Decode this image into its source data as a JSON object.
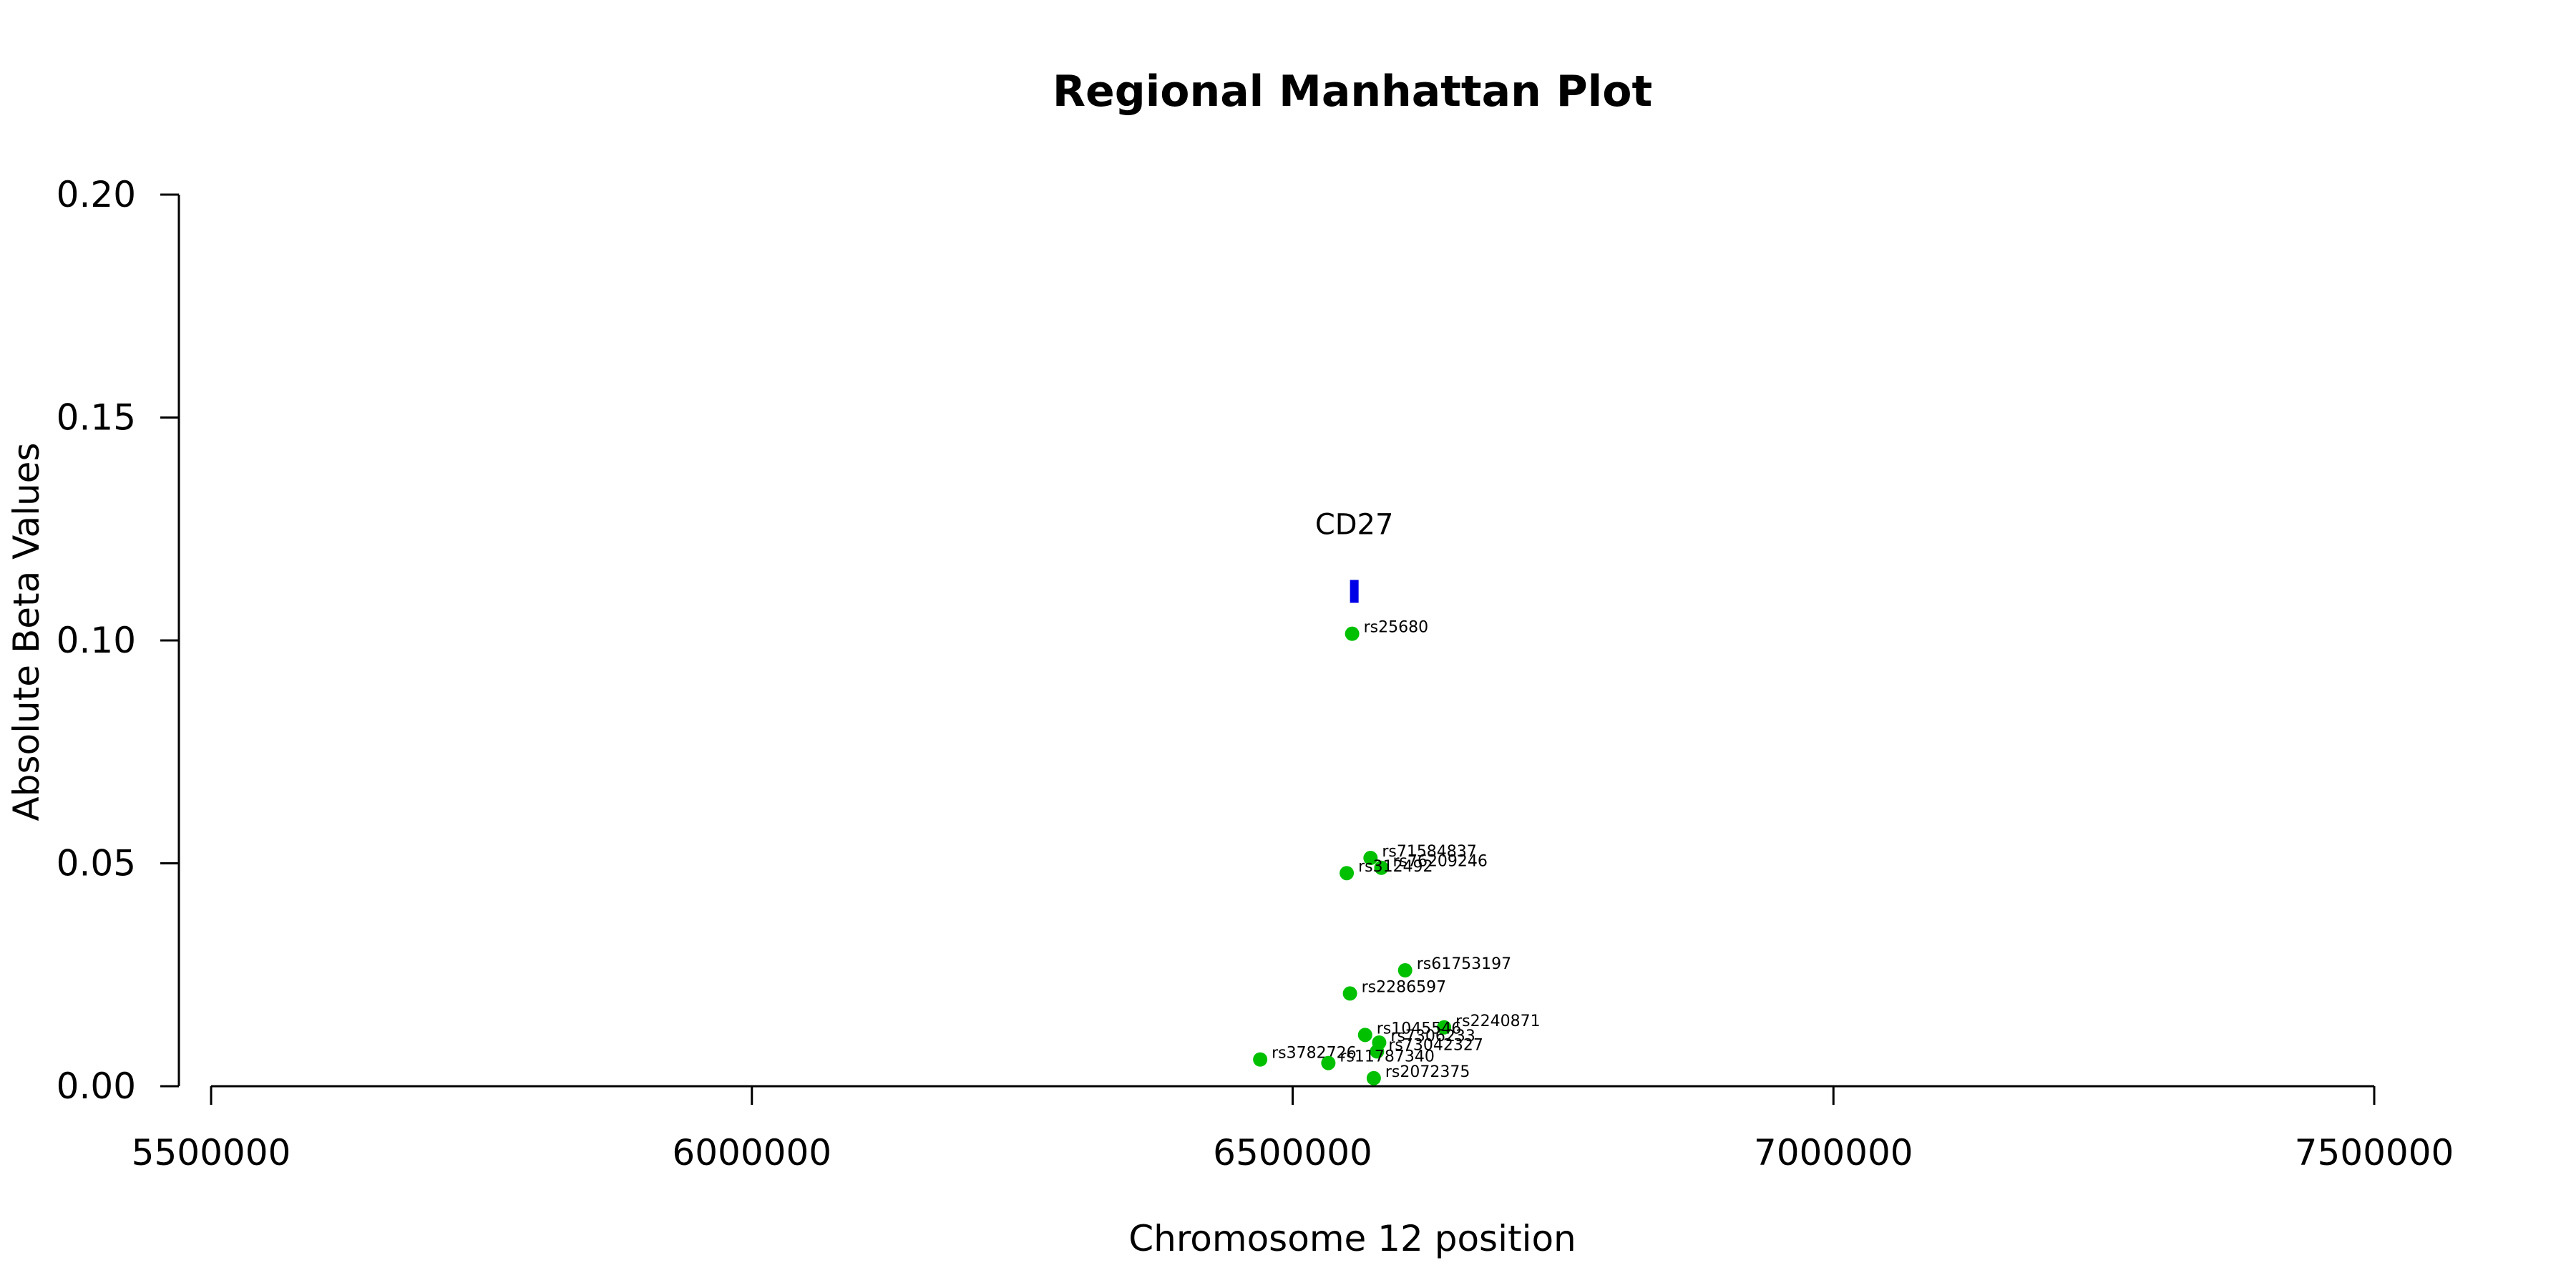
{
  "chart_data": {
    "type": "scatter",
    "title": "Regional Manhattan Plot",
    "xlabel": "Chromosome 12 position",
    "ylabel": "Absolute Beta Values",
    "xlim": [
      5500000,
      7500000
    ],
    "ylim": [
      0,
      0.2
    ],
    "xticks": [
      5500000,
      6000000,
      6500000,
      7000000,
      7500000
    ],
    "xtick_labels": [
      "5500000",
      "6000000",
      "6500000",
      "7000000",
      "7500000"
    ],
    "yticks": [
      0,
      0.05,
      0.1,
      0.15,
      0.2
    ],
    "ytick_labels": [
      "0.00",
      "0.05",
      "0.10",
      "0.15",
      "0.20"
    ],
    "grid": false,
    "point_color": "#00c000",
    "gene_color": "#0000e6",
    "genes": [
      {
        "name": "CD27",
        "start": 6554000,
        "end": 6560000,
        "y": 0.111
      }
    ],
    "points": [
      {
        "label": "rs25680",
        "x": 6555000,
        "y": 0.1015
      },
      {
        "label": "rs71584837",
        "x": 6572000,
        "y": 0.0512
      },
      {
        "label": "rs76209246",
        "x": 6582000,
        "y": 0.049
      },
      {
        "label": "rs312492",
        "x": 6550000,
        "y": 0.0478
      },
      {
        "label": "rs61753197",
        "x": 6604000,
        "y": 0.026
      },
      {
        "label": "rs2286597",
        "x": 6553000,
        "y": 0.0208
      },
      {
        "label": "rs2240871",
        "x": 6640000,
        "y": 0.0132
      },
      {
        "label": "rs1045546",
        "x": 6567000,
        "y": 0.0115
      },
      {
        "label": "rs7306233",
        "x": 6580000,
        "y": 0.0098
      },
      {
        "label": "rs73042327",
        "x": 6578000,
        "y": 0.0078
      },
      {
        "label": "rs3782726",
        "x": 6470000,
        "y": 0.006
      },
      {
        "label": "rs11787340",
        "x": 6533000,
        "y": 0.0052
      },
      {
        "label": "rs2072375",
        "x": 6575000,
        "y": 0.0018
      }
    ]
  }
}
